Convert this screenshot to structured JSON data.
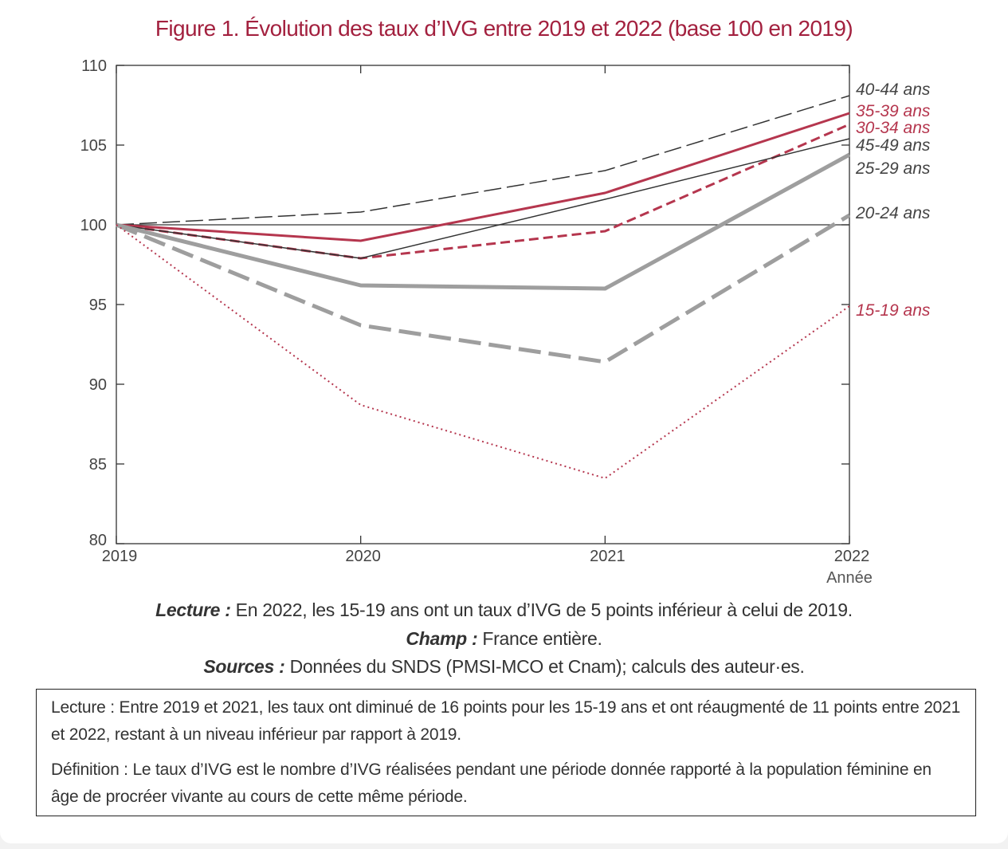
{
  "figure_title": "Figure 1. Évolution des taux d’IVG entre 2019 et 2022 (base 100 en 2019)",
  "colors": {
    "title": "#a3213f",
    "red": "#b5364e",
    "grey": "#9e9e9e",
    "dark": "#333333"
  },
  "chart_data": {
    "type": "line",
    "title": "",
    "xlabel": "Année",
    "ylabel": "",
    "x": [
      2019,
      2020,
      2021,
      2022
    ],
    "xticks": [
      "2019",
      "2020",
      "2021",
      "2022"
    ],
    "ylim": [
      80,
      110
    ],
    "yticks": [
      80,
      85,
      90,
      95,
      100,
      105,
      110
    ],
    "reference_line": 100,
    "grid": false,
    "series": [
      {
        "name": "40-44  ans",
        "values": [
          100,
          100.8,
          103.4,
          108.1
        ],
        "color": "#333333",
        "style": "long-dash",
        "width": 1.5
      },
      {
        "name": "35-39 ans",
        "values": [
          100,
          99.0,
          102.0,
          107.0
        ],
        "color": "#b5364e",
        "style": "solid",
        "width": 3
      },
      {
        "name": "30-34 ans",
        "values": [
          100,
          97.9,
          99.6,
          106.3
        ],
        "color": "#b5364e",
        "style": "dash",
        "width": 3
      },
      {
        "name": "45-49 ans",
        "values": [
          100,
          97.9,
          101.6,
          105.4
        ],
        "color": "#333333",
        "style": "solid",
        "width": 1.5
      },
      {
        "name": "25-29 ans",
        "values": [
          100,
          96.2,
          96.0,
          104.4
        ],
        "color": "#9e9e9e",
        "style": "solid",
        "width": 5
      },
      {
        "name": "20-24 ans",
        "values": [
          100,
          93.7,
          91.4,
          100.6
        ],
        "color": "#9e9e9e",
        "style": "long-dash",
        "width": 5
      },
      {
        "name": "15-19 ans",
        "values": [
          100,
          88.7,
          84.1,
          94.9
        ],
        "color": "#b5364e",
        "style": "dot",
        "width": 2
      }
    ]
  },
  "notes": {
    "lecture_label": "Lecture :",
    "lecture_text": " En 2022, les 15-19 ans ont un taux d’IVG de 5 points inférieur à celui de 2019.",
    "champ_label": "Champ :",
    "champ_text": " France entière.",
    "sources_label": "Sources :",
    "sources_text": " Données du SNDS (PMSI-MCO et Cnam); calculs des auteur·es."
  },
  "box": {
    "lecture": "Lecture : Entre 2019 et 2021, les taux ont diminué de 16 points pour les 15-19 ans et ont réaugmenté de 11 points entre 2021 et 2022, restant à un niveau inférieur par rapport à 2019.",
    "definition": "Définition : Le taux d’IVG est le nombre d’IVG réalisées pendant une période donnée rapporté à la population féminine en âge de procréer vivante au cours de cette même période."
  }
}
